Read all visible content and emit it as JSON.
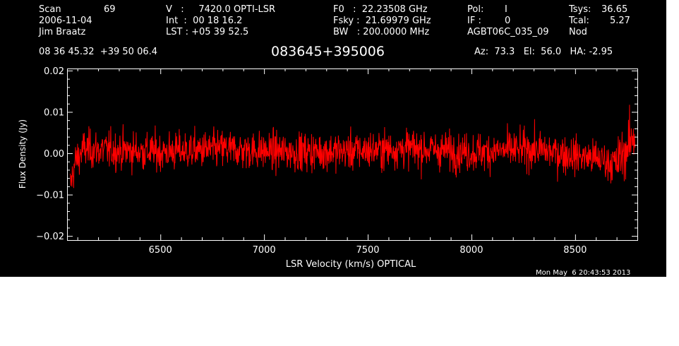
{
  "header": {
    "col1": {
      "scan_label": "Scan",
      "scan_value": "69",
      "date": "2006-11-04",
      "observer": "Jim Braatz"
    },
    "col2": {
      "v_line": "V   :     7420.0 OPTI-LSR",
      "int_line": "Int  :  00 18 16.2",
      "lst_line": "LST : +05 39 52.5"
    },
    "col3": {
      "f0_line": "F0   :  22.23508 GHz",
      "fsky_line": "Fsky :  21.69979 GHz",
      "bw_line": "BW   : 200.0000 MHz"
    },
    "col4": {
      "pol_label": "Pol:",
      "pol_value": "I",
      "if_label": "IF :",
      "if_value": "0",
      "project": "AGBT06C_035_09"
    },
    "col5": {
      "tsys_label": "Tsys:",
      "tsys_value": "36.65",
      "tcal_label": "Tcal:",
      "tcal_value": "5.27",
      "mode": "Nod"
    },
    "coords": "08 36 45.32  +39 50 06.4",
    "source": "083645+395006",
    "pointing": "Az:  73.3   El:  56.0   HA: -2.95",
    "timestamp": "Mon May  6 20:43:53 2013"
  },
  "chart_data": {
    "type": "line",
    "xlabel": "LSR Velocity (km/s) OPTICAL",
    "ylabel": "Flux Density (Jy)",
    "xlim": [
      6050,
      8800
    ],
    "ylim": [
      -0.021,
      0.0205
    ],
    "x_ticks": [
      6500,
      7000,
      7500,
      8000,
      8500
    ],
    "x_tick_labels": [
      "6500",
      "7000",
      "7500",
      "8000",
      "8500"
    ],
    "y_ticks": [
      -0.02,
      -0.01,
      0.0,
      0.01,
      0.02
    ],
    "y_tick_labels": [
      "−0.02",
      "−0.01",
      "0.00",
      "0.01",
      "0.02"
    ],
    "grid": false,
    "series": [
      {
        "color": "#ff0000",
        "x_range": [
          6065,
          8790
        ],
        "noise_rms": 0.0042,
        "baseline": [
          {
            "x": 6065,
            "y": -0.008
          },
          {
            "x": 6090,
            "y": -0.002
          },
          {
            "x": 6130,
            "y": 0.001
          },
          {
            "x": 6500,
            "y": 0.0003
          },
          {
            "x": 6800,
            "y": 0.001
          },
          {
            "x": 7100,
            "y": 0.0003
          },
          {
            "x": 7400,
            "y": 0.0005
          },
          {
            "x": 7700,
            "y": 0.0012
          },
          {
            "x": 8000,
            "y": 0.0002
          },
          {
            "x": 8300,
            "y": 0.001
          },
          {
            "x": 8620,
            "y": -0.0015
          },
          {
            "x": 8700,
            "y": -0.0025
          },
          {
            "x": 8760,
            "y": 0.002
          },
          {
            "x": 8790,
            "y": 0.005
          }
        ]
      }
    ]
  }
}
